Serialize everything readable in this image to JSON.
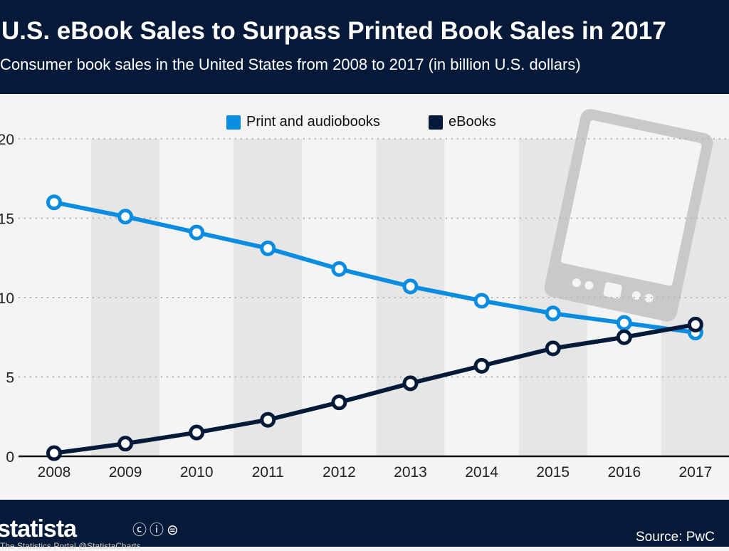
{
  "header": {
    "title": "U.S. eBook Sales to Surpass Printed Book Sales in 2017",
    "subtitle": "Consumer book sales in the United States from 2008 to 2017 (in billion U.S. dollars)"
  },
  "footer": {
    "brand": "statista",
    "brand_sub": "The Statistics Portal   @StatistaCharts",
    "license_icons": "cc-by-nd-icons",
    "source": "Source: PwC"
  },
  "colors": {
    "print": "#0a8ce0",
    "ebooks": "#041a38",
    "header_bg": "#041a38"
  },
  "chart_data": {
    "type": "line",
    "title": "U.S. eBook Sales to Surpass Printed Book Sales in 2017",
    "subtitle": "Consumer book sales in the United States from 2008 to 2017 (in billion U.S. dollars)",
    "categories": [
      "2008",
      "2009",
      "2010",
      "2011",
      "2012",
      "2013",
      "2014",
      "2015",
      "2016",
      "2017"
    ],
    "yticks": [
      "0",
      "5",
      "10",
      "15",
      "20"
    ],
    "ylim": [
      0,
      20
    ],
    "grid": true,
    "legend_position": "top",
    "series": [
      {
        "name": "Print and audiobooks",
        "color": "#0a8ce0",
        "values": [
          16.0,
          15.1,
          14.1,
          13.1,
          11.8,
          10.7,
          9.8,
          9.0,
          8.4,
          7.8
        ]
      },
      {
        "name": "eBooks",
        "color": "#041a38",
        "values": [
          0.2,
          0.8,
          1.5,
          2.3,
          3.4,
          4.6,
          5.7,
          6.8,
          7.5,
          8.3
        ]
      }
    ]
  }
}
